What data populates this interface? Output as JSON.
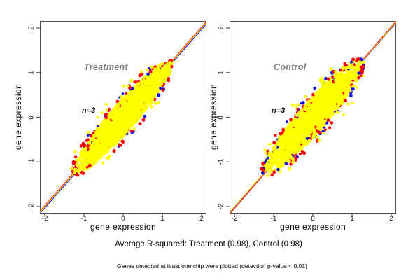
{
  "figure": {
    "background": "#ffffff",
    "captions": {
      "primary": "Average R-squared: Treatment (0.98), Control (0.98)",
      "secondary": "Genes detected at least one chip were plotted (detection p-value < 0.01)"
    }
  },
  "chart_data": {
    "type": "scatter",
    "shared": {
      "xlabel": "gene expression",
      "ylabel": "gene expression",
      "xlim": [
        -2.2,
        2.2
      ],
      "ylim": [
        -2.2,
        2.2
      ],
      "x_ticks": [
        -2,
        -1,
        0,
        1,
        2
      ],
      "y_ticks": [
        -2,
        -1,
        0,
        1,
        2
      ],
      "grid": false,
      "legend": false,
      "box_color": "#4d4d4d",
      "panel_label_color": "#7b7b7b",
      "point_colors": {
        "dense": "#ffff00",
        "edge_red": "#ff0000",
        "edge_blue": "#1414e0"
      }
    },
    "panels": [
      {
        "label": "Treatment",
        "annotation": "n=3",
        "r_squared": 0.98,
        "cloud": {
          "seed": 11,
          "extent": [
            -1.27,
            1.27
          ],
          "half_width": 0.3,
          "n_dense": 2300,
          "n_edge_red": 80,
          "n_edge_blue": 26,
          "n_outlier": 22,
          "red_up_bias": 0.66
        },
        "lines": [
          {
            "color": "#1414e0",
            "slope": 1.0,
            "intercept": -0.032
          },
          {
            "color": "#ffdd00",
            "slope": 1.0,
            "intercept": -0.006
          },
          {
            "color": "#ff2200",
            "slope": 1.0,
            "intercept": 0.02
          }
        ]
      },
      {
        "label": "Control",
        "annotation": "n=3",
        "r_squared": 0.98,
        "cloud": {
          "seed": 29,
          "extent": [
            -1.27,
            1.27
          ],
          "half_width": 0.33,
          "n_dense": 2300,
          "n_edge_red": 95,
          "n_edge_blue": 58,
          "n_outlier": 30,
          "red_up_bias": 0.5
        },
        "lines": [
          {
            "color": "#1414e0",
            "slope": 1.0,
            "intercept": -0.012
          },
          {
            "color": "#ffdd00",
            "slope": 1.0,
            "intercept": 0.0
          },
          {
            "color": "#ff2200",
            "slope": 1.018,
            "intercept": -0.008
          }
        ]
      }
    ]
  }
}
